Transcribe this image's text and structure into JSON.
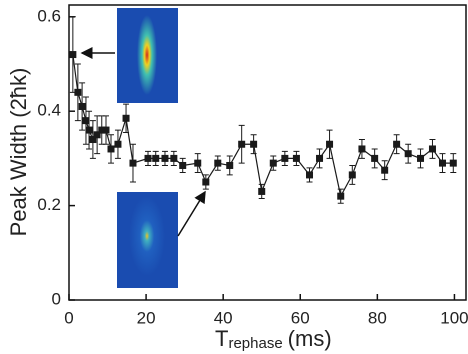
{
  "chart_data": {
    "type": "line",
    "y_label": "Peak Width (2ħk)",
    "x_label": "T",
    "x_label_sub": "rephase",
    "x_label_unit": "(ms)",
    "xlim": [
      0,
      103
    ],
    "ylim": [
      0,
      0.625
    ],
    "xticks": [
      0,
      20,
      40,
      60,
      80,
      100
    ],
    "yticks": [
      0,
      0.2,
      0.4,
      0.6
    ],
    "series": [
      {
        "color": "#1a1a1a",
        "x": [
          1,
          2.3,
          3.4,
          4.4,
          5.2,
          6.2,
          7.3,
          8.5,
          9.6,
          10.9,
          12.7,
          14.8,
          16.6,
          20.5,
          22.5,
          24.9,
          27.2,
          29.5,
          33.4,
          35.5,
          38.6,
          41.7,
          44.8,
          47.9,
          50,
          53,
          56,
          59,
          62.4,
          65,
          67.6,
          70.5,
          73.5,
          76,
          79.3,
          81.9,
          85,
          88,
          91.2,
          94.3,
          96.9,
          99.7
        ],
        "values": [
          0.52,
          0.44,
          0.41,
          0.38,
          0.36,
          0.34,
          0.35,
          0.36,
          0.36,
          0.32,
          0.33,
          0.385,
          0.29,
          0.3,
          0.3,
          0.3,
          0.3,
          0.285,
          0.29,
          0.25,
          0.29,
          0.285,
          0.33,
          0.33,
          0.23,
          0.29,
          0.3,
          0.3,
          0.265,
          0.3,
          0.33,
          0.22,
          0.265,
          0.32,
          0.3,
          0.275,
          0.33,
          0.31,
          0.3,
          0.32,
          0.29,
          0.29
        ],
        "errors": [
          0.08,
          0.06,
          0.05,
          0.05,
          0.04,
          0.04,
          0.04,
          0.03,
          0.03,
          0.03,
          0.03,
          0.03,
          0.04,
          0.015,
          0.015,
          0.015,
          0.015,
          0.015,
          0.02,
          0.015,
          0.015,
          0.02,
          0.04,
          0.02,
          0.015,
          0.015,
          0.015,
          0.015,
          0.015,
          0.02,
          0.03,
          0.015,
          0.02,
          0.02,
          0.02,
          0.02,
          0.02,
          0.02,
          0.02,
          0.02,
          0.02,
          0.02
        ]
      }
    ]
  }
}
